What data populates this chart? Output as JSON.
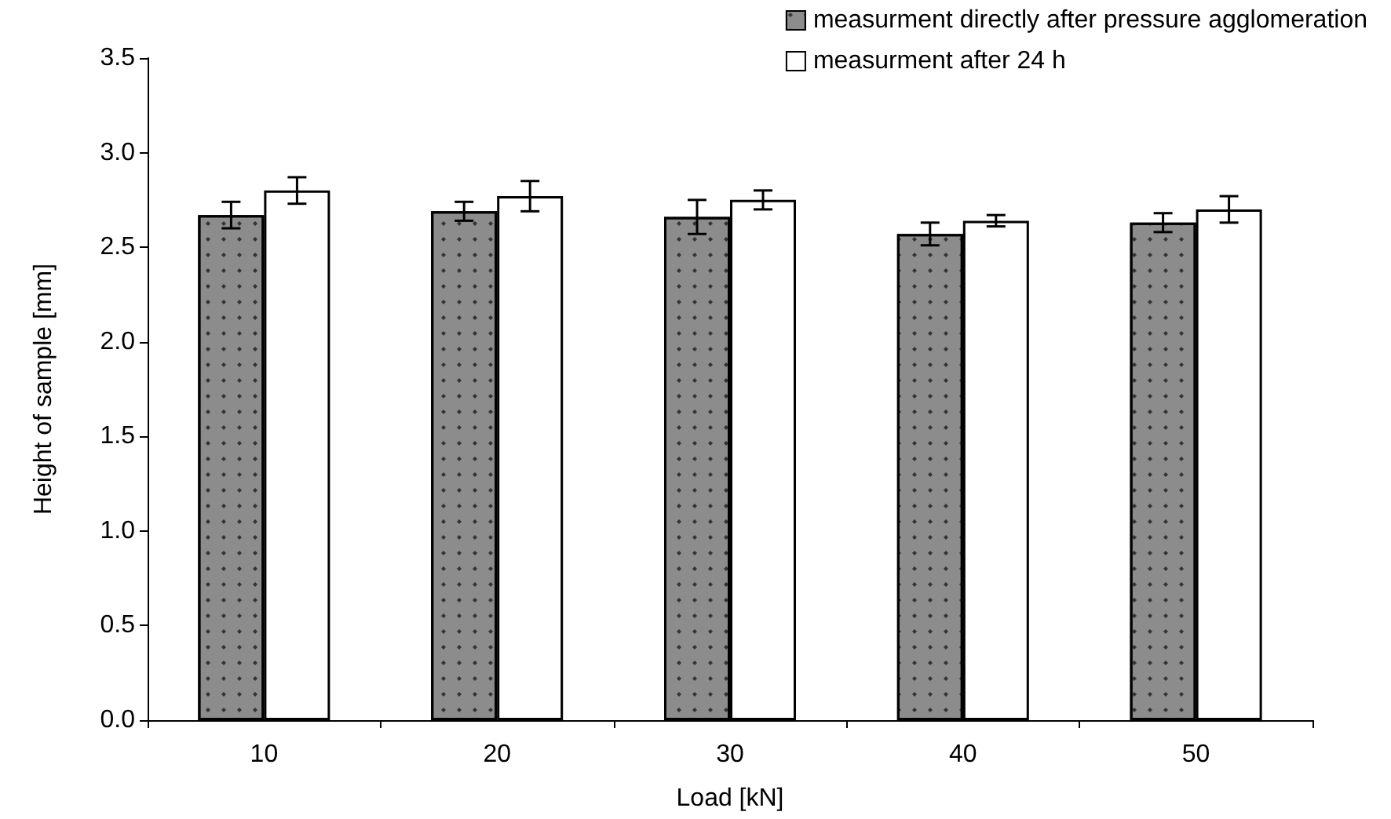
{
  "chart_data": {
    "type": "bar",
    "xlabel": "Load [kN]",
    "ylabel": "Height of sample [mm]",
    "categories": [
      "10",
      "20",
      "30",
      "40",
      "50"
    ],
    "series": [
      {
        "name": "measurment directly after pressure agglomeration",
        "color": "#8c8c8c",
        "values": [
          2.67,
          2.69,
          2.66,
          2.57,
          2.63
        ],
        "errors": [
          0.07,
          0.05,
          0.09,
          0.06,
          0.05
        ]
      },
      {
        "name": "measurment after 24 h",
        "color": "#ffffff",
        "values": [
          2.8,
          2.77,
          2.75,
          2.64,
          2.7
        ],
        "errors": [
          0.07,
          0.08,
          0.05,
          0.03,
          0.07
        ]
      }
    ],
    "ylim": [
      0,
      3.5
    ],
    "yticks": [
      {
        "value": 0,
        "label": "0.0"
      },
      {
        "value": 0.5,
        "label": "0.5"
      },
      {
        "value": 1,
        "label": "1.0"
      },
      {
        "value": 1.5,
        "label": "1.5"
      },
      {
        "value": 2,
        "label": "2.0"
      },
      {
        "value": 2.5,
        "label": "2.5"
      },
      {
        "value": 3,
        "label": "3.0"
      },
      {
        "value": 3.5,
        "label": "3.5"
      }
    ],
    "grid": false,
    "legend": "top right"
  }
}
